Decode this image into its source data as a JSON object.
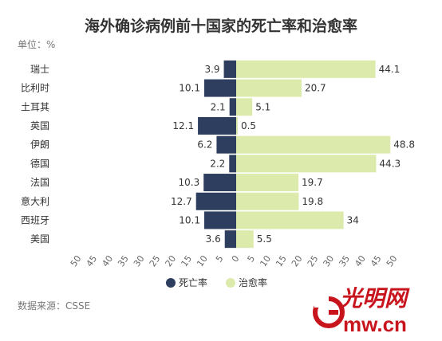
{
  "title": "海外确诊病例前十国家的死亡率和治愈率",
  "unit_label": "单位：%",
  "source": "数据来源：CSSE",
  "logo": {
    "text": "光明网",
    "domain": "Gmw.cn"
  },
  "chart_data": {
    "type": "bar",
    "orientation": "horizontal-diverging",
    "categories": [
      "瑞士",
      "比利时",
      "土耳其",
      "英国",
      "伊朗",
      "德国",
      "法国",
      "意大利",
      "西班牙",
      "美国"
    ],
    "series": [
      {
        "name": "死亡率",
        "color": "#2d3e5e",
        "direction": "left",
        "values": [
          3.9,
          10.1,
          2.1,
          12.1,
          6.2,
          2.2,
          10.3,
          12.7,
          10.1,
          3.6
        ]
      },
      {
        "name": "治愈率",
        "color": "#dcebab",
        "direction": "right",
        "values": [
          44.1,
          20.7,
          5.1,
          0.5,
          48.8,
          44.3,
          19.7,
          19.8,
          34,
          5.5
        ]
      }
    ],
    "x_ticks": [
      "50",
      "45",
      "40",
      "35",
      "30",
      "25",
      "20",
      "15",
      "10",
      "5",
      "0",
      "5",
      "10",
      "15",
      "20",
      "25",
      "30",
      "35",
      "40",
      "45",
      "50"
    ],
    "xlim": [
      -50,
      50
    ],
    "legend_position": "bottom-center",
    "grid": false
  }
}
